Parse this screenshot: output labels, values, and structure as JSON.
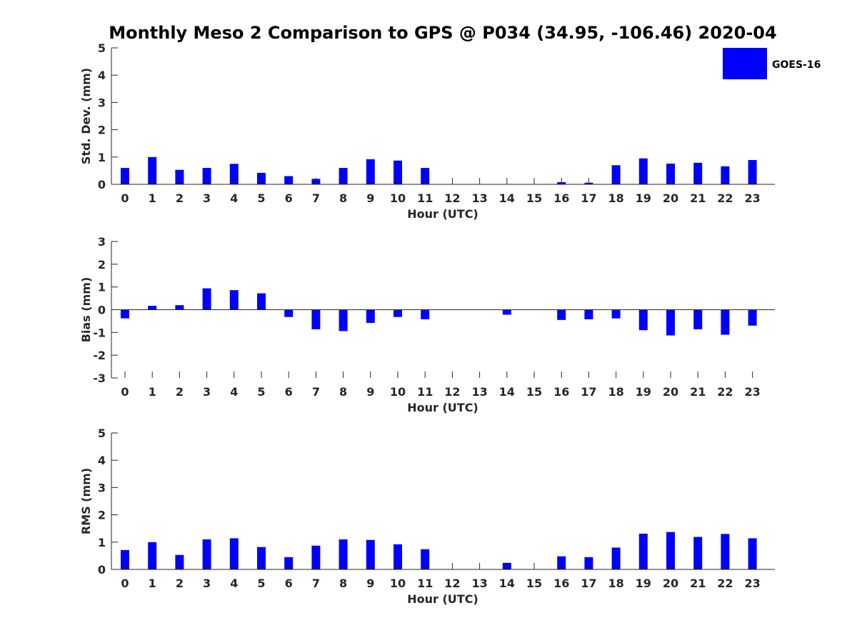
{
  "chart_data": {
    "title": "Monthly Meso 2 Comparison to GPS @ P034 (34.95, -106.46) 2020-04",
    "series_color": "#0000ff",
    "legend": [
      "GOES-16"
    ],
    "legend_placement": "top-right",
    "categories": [
      "0",
      "1",
      "2",
      "3",
      "4",
      "5",
      "6",
      "7",
      "8",
      "9",
      "10",
      "11",
      "12",
      "13",
      "14",
      "15",
      "16",
      "17",
      "18",
      "19",
      "20",
      "21",
      "22",
      "23"
    ],
    "panels": [
      {
        "type": "bar",
        "xlabel": "Hour (UTC)",
        "ylabel": "Std. Dev. (mm)",
        "ylim": [
          0,
          5
        ],
        "yticks": [
          "0",
          "1",
          "2",
          "3",
          "4",
          "5"
        ],
        "values": [
          0.6,
          1.0,
          0.53,
          0.6,
          0.75,
          0.42,
          0.3,
          0.2,
          0.6,
          0.92,
          0.87,
          0.6,
          0,
          0,
          0,
          0,
          0.08,
          0.06,
          0.7,
          0.95,
          0.76,
          0.79,
          0.66,
          0.89
        ]
      },
      {
        "type": "bar",
        "xlabel": "Hour (UTC)",
        "ylabel": "Bias (mm)",
        "ylim": [
          -3,
          3
        ],
        "yticks": [
          "-3",
          "-2",
          "-1",
          "0",
          "1",
          "2",
          "3"
        ],
        "values": [
          -0.38,
          0.17,
          0.2,
          0.94,
          0.86,
          0.72,
          -0.32,
          -0.86,
          -0.94,
          -0.58,
          -0.32,
          -0.42,
          0,
          0,
          -0.22,
          0,
          -0.45,
          -0.42,
          -0.38,
          -0.9,
          -1.13,
          -0.86,
          -1.1,
          -0.7
        ]
      },
      {
        "type": "bar",
        "xlabel": "Hour (UTC)",
        "ylabel": "RMS (mm)",
        "ylim": [
          0,
          5
        ],
        "yticks": [
          "0",
          "1",
          "2",
          "3",
          "4",
          "5"
        ],
        "values": [
          0.71,
          1.0,
          0.53,
          1.1,
          1.14,
          0.82,
          0.45,
          0.87,
          1.1,
          1.08,
          0.92,
          0.74,
          0,
          0,
          0.24,
          0,
          0.48,
          0.45,
          0.8,
          1.31,
          1.37,
          1.19,
          1.3,
          1.14
        ]
      }
    ]
  }
}
